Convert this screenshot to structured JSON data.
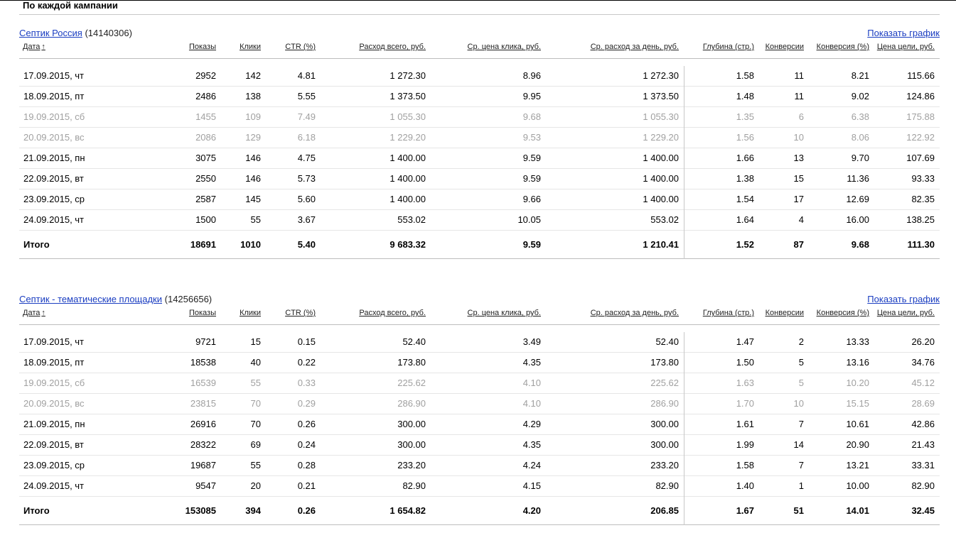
{
  "section_title": "По каждой кампании",
  "show_chart_label": "Показать график",
  "columns": {
    "date": "Дата",
    "date_sort_arrow": "↑",
    "shows": "Показы",
    "clicks": "Клики",
    "ctr": "CTR (%)",
    "spend_total": "Расход всего, руб.",
    "avg_cpc": "Ср. цена клика, руб.",
    "avg_daily_spend": "Ср. расход за день, руб.",
    "depth": "Глубина (стр.)",
    "conversions": "Конверсии",
    "conversion_pct": "Конверсия (%)",
    "goal_price": "Цена цели, руб."
  },
  "campaigns": [
    {
      "name": "Септик Россия",
      "id": "(14140306)",
      "rows": [
        {
          "date": "17.09.2015, чт",
          "shows": "2952",
          "clicks": "142",
          "ctr": "4.81",
          "spend": "1 272.30",
          "cpc": "8.96",
          "day": "1 272.30",
          "depth": "1.58",
          "conv": "11",
          "convp": "8.21",
          "goal": "115.66",
          "dim": false
        },
        {
          "date": "18.09.2015, пт",
          "shows": "2486",
          "clicks": "138",
          "ctr": "5.55",
          "spend": "1 373.50",
          "cpc": "9.95",
          "day": "1 373.50",
          "depth": "1.48",
          "conv": "11",
          "convp": "9.02",
          "goal": "124.86",
          "dim": false
        },
        {
          "date": "19.09.2015, сб",
          "shows": "1455",
          "clicks": "109",
          "ctr": "7.49",
          "spend": "1 055.30",
          "cpc": "9.68",
          "day": "1 055.30",
          "depth": "1.35",
          "conv": "6",
          "convp": "6.38",
          "goal": "175.88",
          "dim": true
        },
        {
          "date": "20.09.2015, вс",
          "shows": "2086",
          "clicks": "129",
          "ctr": "6.18",
          "spend": "1 229.20",
          "cpc": "9.53",
          "day": "1 229.20",
          "depth": "1.56",
          "conv": "10",
          "convp": "8.06",
          "goal": "122.92",
          "dim": true
        },
        {
          "date": "21.09.2015, пн",
          "shows": "3075",
          "clicks": "146",
          "ctr": "4.75",
          "spend": "1 400.00",
          "cpc": "9.59",
          "day": "1 400.00",
          "depth": "1.66",
          "conv": "13",
          "convp": "9.70",
          "goal": "107.69",
          "dim": false
        },
        {
          "date": "22.09.2015, вт",
          "shows": "2550",
          "clicks": "146",
          "ctr": "5.73",
          "spend": "1 400.00",
          "cpc": "9.59",
          "day": "1 400.00",
          "depth": "1.38",
          "conv": "15",
          "convp": "11.36",
          "goal": "93.33",
          "dim": false
        },
        {
          "date": "23.09.2015, ср",
          "shows": "2587",
          "clicks": "145",
          "ctr": "5.60",
          "spend": "1 400.00",
          "cpc": "9.66",
          "day": "1 400.00",
          "depth": "1.54",
          "conv": "17",
          "convp": "12.69",
          "goal": "82.35",
          "dim": false
        },
        {
          "date": "24.09.2015, чт",
          "shows": "1500",
          "clicks": "55",
          "ctr": "3.67",
          "spend": "553.02",
          "cpc": "10.05",
          "day": "553.02",
          "depth": "1.64",
          "conv": "4",
          "convp": "16.00",
          "goal": "138.25",
          "dim": false
        }
      ],
      "total": {
        "label": "Итого",
        "shows": "18691",
        "clicks": "1010",
        "ctr": "5.40",
        "spend": "9 683.32",
        "cpc": "9.59",
        "day": "1 210.41",
        "depth": "1.52",
        "conv": "87",
        "convp": "9.68",
        "goal": "111.30"
      }
    },
    {
      "name": "Септик - тематические площадки",
      "id": "(14256656)",
      "rows": [
        {
          "date": "17.09.2015, чт",
          "shows": "9721",
          "clicks": "15",
          "ctr": "0.15",
          "spend": "52.40",
          "cpc": "3.49",
          "day": "52.40",
          "depth": "1.47",
          "conv": "2",
          "convp": "13.33",
          "goal": "26.20",
          "dim": false
        },
        {
          "date": "18.09.2015, пт",
          "shows": "18538",
          "clicks": "40",
          "ctr": "0.22",
          "spend": "173.80",
          "cpc": "4.35",
          "day": "173.80",
          "depth": "1.50",
          "conv": "5",
          "convp": "13.16",
          "goal": "34.76",
          "dim": false
        },
        {
          "date": "19.09.2015, сб",
          "shows": "16539",
          "clicks": "55",
          "ctr": "0.33",
          "spend": "225.62",
          "cpc": "4.10",
          "day": "225.62",
          "depth": "1.63",
          "conv": "5",
          "convp": "10.20",
          "goal": "45.12",
          "dim": true
        },
        {
          "date": "20.09.2015, вс",
          "shows": "23815",
          "clicks": "70",
          "ctr": "0.29",
          "spend": "286.90",
          "cpc": "4.10",
          "day": "286.90",
          "depth": "1.70",
          "conv": "10",
          "convp": "15.15",
          "goal": "28.69",
          "dim": true
        },
        {
          "date": "21.09.2015, пн",
          "shows": "26916",
          "clicks": "70",
          "ctr": "0.26",
          "spend": "300.00",
          "cpc": "4.29",
          "day": "300.00",
          "depth": "1.61",
          "conv": "7",
          "convp": "10.61",
          "goal": "42.86",
          "dim": false
        },
        {
          "date": "22.09.2015, вт",
          "shows": "28322",
          "clicks": "69",
          "ctr": "0.24",
          "spend": "300.00",
          "cpc": "4.35",
          "day": "300.00",
          "depth": "1.99",
          "conv": "14",
          "convp": "20.90",
          "goal": "21.43",
          "dim": false
        },
        {
          "date": "23.09.2015, ср",
          "shows": "19687",
          "clicks": "55",
          "ctr": "0.28",
          "spend": "233.20",
          "cpc": "4.24",
          "day": "233.20",
          "depth": "1.58",
          "conv": "7",
          "convp": "13.21",
          "goal": "33.31",
          "dim": false
        },
        {
          "date": "24.09.2015, чт",
          "shows": "9547",
          "clicks": "20",
          "ctr": "0.21",
          "spend": "82.90",
          "cpc": "4.15",
          "day": "82.90",
          "depth": "1.40",
          "conv": "1",
          "convp": "10.00",
          "goal": "82.90",
          "dim": false
        }
      ],
      "total": {
        "label": "Итого",
        "shows": "153085",
        "clicks": "394",
        "ctr": "0.26",
        "spend": "1 654.82",
        "cpc": "4.20",
        "day": "206.85",
        "depth": "1.67",
        "conv": "51",
        "convp": "14.01",
        "goal": "32.45"
      }
    }
  ]
}
